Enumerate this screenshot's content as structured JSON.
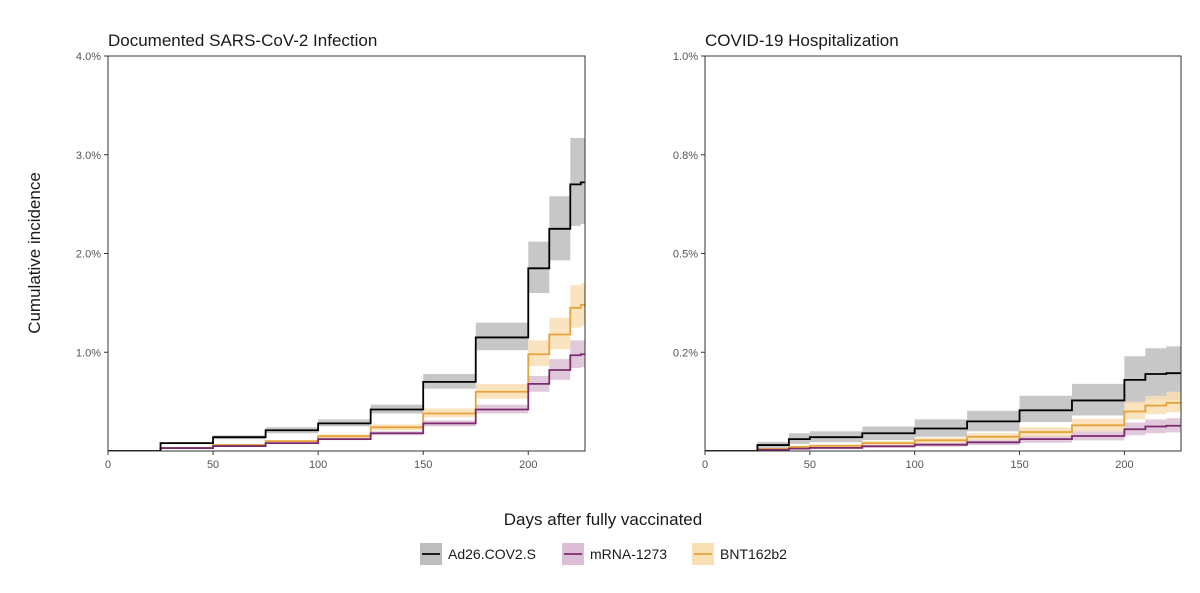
{
  "figure": {
    "xlabel": "Days after fully vaccinated",
    "ylabel": "Cumulative incidence"
  },
  "legend": {
    "placement": "bottom",
    "items": [
      {
        "label": "Ad26.COV2.S",
        "color": "#000000",
        "band": "#bdbdbd"
      },
      {
        "label": "mRNA-1273",
        "color": "#7b2a6e",
        "band": "#dcbfd6"
      },
      {
        "label": "BNT162b2",
        "color": "#e6a23c",
        "band": "#f8dfb4"
      }
    ]
  },
  "chart_data": [
    {
      "type": "line",
      "title": "Documented SARS-CoV-2 Infection",
      "xlim": [
        0,
        227
      ],
      "ylim": [
        0,
        4.0
      ],
      "x_ticks": [
        0,
        50,
        100,
        150,
        200
      ],
      "x_tick_labels": [
        "0",
        "50",
        "100",
        "150",
        "200"
      ],
      "y_ticks": [
        1.0,
        2.0,
        3.0,
        4.0
      ],
      "y_tick_labels": [
        "1.0%",
        "2.0%",
        "3.0%",
        "4.0%"
      ],
      "grid": false,
      "x": [
        0,
        25,
        50,
        75,
        100,
        125,
        150,
        175,
        200,
        210,
        220,
        225
      ],
      "series": [
        {
          "name": "Ad26.COV2.S",
          "color": "#000000",
          "band": "#bdbdbd",
          "values": [
            0,
            0.08,
            0.14,
            0.21,
            0.28,
            0.42,
            0.7,
            1.15,
            1.85,
            2.25,
            2.7,
            2.72
          ],
          "lower": [
            0,
            0.07,
            0.12,
            0.18,
            0.25,
            0.38,
            0.63,
            1.02,
            1.6,
            1.93,
            2.28,
            2.3
          ],
          "upper": [
            0,
            0.09,
            0.16,
            0.24,
            0.32,
            0.47,
            0.78,
            1.3,
            2.12,
            2.58,
            3.17,
            3.17
          ]
        },
        {
          "name": "mRNA-1273",
          "color": "#7b2a6e",
          "band": "#dcbfd6",
          "values": [
            0,
            0.03,
            0.05,
            0.08,
            0.12,
            0.18,
            0.28,
            0.42,
            0.68,
            0.82,
            0.97,
            0.98
          ],
          "lower": [
            0,
            0.025,
            0.045,
            0.07,
            0.11,
            0.16,
            0.25,
            0.38,
            0.6,
            0.72,
            0.84,
            0.85
          ],
          "upper": [
            0,
            0.035,
            0.06,
            0.09,
            0.14,
            0.2,
            0.31,
            0.47,
            0.76,
            0.93,
            1.12,
            1.12
          ]
        },
        {
          "name": "BNT162b2",
          "color": "#e6a23c",
          "band": "#f8dfb4",
          "values": [
            0,
            0.03,
            0.06,
            0.1,
            0.15,
            0.24,
            0.38,
            0.6,
            0.98,
            1.18,
            1.45,
            1.48
          ],
          "lower": [
            0,
            0.025,
            0.05,
            0.09,
            0.13,
            0.21,
            0.34,
            0.53,
            0.86,
            1.03,
            1.25,
            1.27
          ],
          "upper": [
            0,
            0.035,
            0.07,
            0.11,
            0.17,
            0.27,
            0.43,
            0.68,
            1.12,
            1.35,
            1.68,
            1.7
          ]
        }
      ]
    },
    {
      "type": "line",
      "title": "COVID-19 Hospitalization",
      "xlim": [
        0,
        227
      ],
      "ylim": [
        0,
        1.0
      ],
      "x_ticks": [
        0,
        50,
        100,
        150,
        200
      ],
      "x_tick_labels": [
        "0",
        "50",
        "100",
        "150",
        "200"
      ],
      "y_ticks": [
        0.25,
        0.5,
        0.75,
        1.0
      ],
      "y_tick_labels": [
        "0.2%",
        "0.5%",
        "0.8%",
        "1.0%"
      ],
      "grid": false,
      "x": [
        0,
        25,
        40,
        50,
        75,
        100,
        125,
        150,
        175,
        200,
        210,
        220,
        227
      ],
      "series": [
        {
          "name": "Ad26.COV2.S",
          "color": "#000000",
          "band": "#bdbdbd",
          "values": [
            0,
            0.015,
            0.03,
            0.035,
            0.045,
            0.057,
            0.075,
            0.103,
            0.128,
            0.18,
            0.195,
            0.197,
            0.197
          ],
          "lower": [
            0,
            0.008,
            0.018,
            0.022,
            0.028,
            0.036,
            0.05,
            0.073,
            0.09,
            0.12,
            0.13,
            0.13,
            0.13
          ],
          "upper": [
            0,
            0.023,
            0.045,
            0.05,
            0.062,
            0.08,
            0.102,
            0.14,
            0.17,
            0.24,
            0.26,
            0.265,
            0.265
          ]
        },
        {
          "name": "mRNA-1273",
          "color": "#7b2a6e",
          "band": "#dcbfd6",
          "values": [
            0,
            0.003,
            0.006,
            0.008,
            0.012,
            0.016,
            0.022,
            0.03,
            0.038,
            0.055,
            0.062,
            0.064,
            0.064
          ],
          "lower": [
            0,
            0.002,
            0.004,
            0.005,
            0.008,
            0.011,
            0.015,
            0.021,
            0.027,
            0.04,
            0.045,
            0.047,
            0.047
          ],
          "upper": [
            0,
            0.005,
            0.009,
            0.011,
            0.016,
            0.021,
            0.029,
            0.039,
            0.05,
            0.072,
            0.08,
            0.083,
            0.083
          ]
        },
        {
          "name": "BNT162b2",
          "color": "#e6a23c",
          "band": "#f8dfb4",
          "values": [
            0,
            0.005,
            0.01,
            0.013,
            0.02,
            0.027,
            0.036,
            0.048,
            0.065,
            0.1,
            0.115,
            0.122,
            0.123
          ],
          "lower": [
            0,
            0.003,
            0.007,
            0.009,
            0.015,
            0.02,
            0.027,
            0.037,
            0.05,
            0.08,
            0.093,
            0.098,
            0.1
          ],
          "upper": [
            0,
            0.007,
            0.013,
            0.017,
            0.025,
            0.034,
            0.045,
            0.06,
            0.082,
            0.125,
            0.14,
            0.15,
            0.152
          ]
        }
      ]
    }
  ]
}
